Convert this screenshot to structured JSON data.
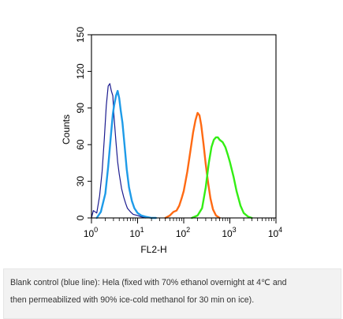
{
  "chart_data": {
    "type": "line",
    "xlabel": "FL2-H",
    "ylabel": "Counts",
    "x_scale": "log",
    "xlim": [
      1,
      10000
    ],
    "ylim": [
      0,
      150
    ],
    "x_ticks": [
      1,
      10,
      100,
      1000,
      10000
    ],
    "x_tick_labels": [
      {
        "base": "10",
        "exp": "0"
      },
      {
        "base": "10",
        "exp": "1"
      },
      {
        "base": "10",
        "exp": "2"
      },
      {
        "base": "10",
        "exp": "3"
      },
      {
        "base": "10",
        "exp": "4"
      }
    ],
    "y_ticks": [
      0,
      30,
      60,
      90,
      120,
      150
    ],
    "y_tick_labels": [
      "0",
      "30",
      "60",
      "90",
      "120",
      "150"
    ],
    "grid": false,
    "series": [
      {
        "color": "#1b1b8f",
        "x": [
          1,
          1.1,
          1.3,
          1.5,
          1.7,
          1.9,
          2.1,
          2.3,
          2.5,
          2.7,
          2.9,
          3.1,
          3.4,
          3.7,
          4.0,
          4.5,
          5.0,
          5.5,
          6.0,
          7.0,
          8.0,
          10.0,
          12.0,
          15.0
        ],
        "y": [
          0,
          6,
          4,
          18,
          38,
          65,
          92,
          108,
          110,
          104,
          100,
          82,
          62,
          46,
          36,
          24,
          17,
          12,
          8,
          5,
          3,
          2,
          1,
          0
        ]
      },
      {
        "color": "#1e9be8",
        "x": [
          1.3,
          1.6,
          2.0,
          2.3,
          2.6,
          2.9,
          3.1,
          3.4,
          3.7,
          4.0,
          4.3,
          4.7,
          5.2,
          5.8,
          6.5,
          7.5,
          8.5,
          10.0,
          12.0,
          15.0,
          20.0,
          25.0
        ],
        "y": [
          0,
          5,
          20,
          42,
          65,
          85,
          92,
          100,
          104,
          98,
          88,
          78,
          60,
          40,
          25,
          14,
          8,
          4,
          2,
          1,
          0,
          0
        ]
      },
      {
        "color": "#ff6a13",
        "x": [
          40,
          50,
          60,
          70,
          80,
          90,
          100,
          120,
          140,
          160,
          180,
          200,
          220,
          240,
          270,
          300,
          340,
          380,
          430,
          500,
          600
        ],
        "y": [
          0,
          2,
          5,
          6,
          10,
          16,
          22,
          38,
          55,
          70,
          80,
          86,
          84,
          76,
          60,
          44,
          28,
          16,
          7,
          2,
          0
        ]
      },
      {
        "color": "#33ee14",
        "x": [
          150,
          200,
          250,
          300,
          350,
          400,
          450,
          500,
          550,
          600,
          700,
          800,
          900,
          1000,
          1200,
          1400,
          1700,
          2000,
          2500,
          3000
        ],
        "y": [
          0,
          2,
          8,
          25,
          45,
          58,
          64,
          66,
          66,
          64,
          62,
          58,
          52,
          46,
          34,
          22,
          10,
          4,
          1,
          0
        ]
      }
    ]
  },
  "caption": {
    "line1": "Blank control (blue line): Hela (fixed with 70% ethanol overnight at 4℃ and",
    "line2": "then permeabilized with 90% ice-cold methanol for 30 min on ice)."
  },
  "colors": {
    "axis": "#000000",
    "caption_bg": "#f2f2f2",
    "caption_text": "#333333"
  }
}
